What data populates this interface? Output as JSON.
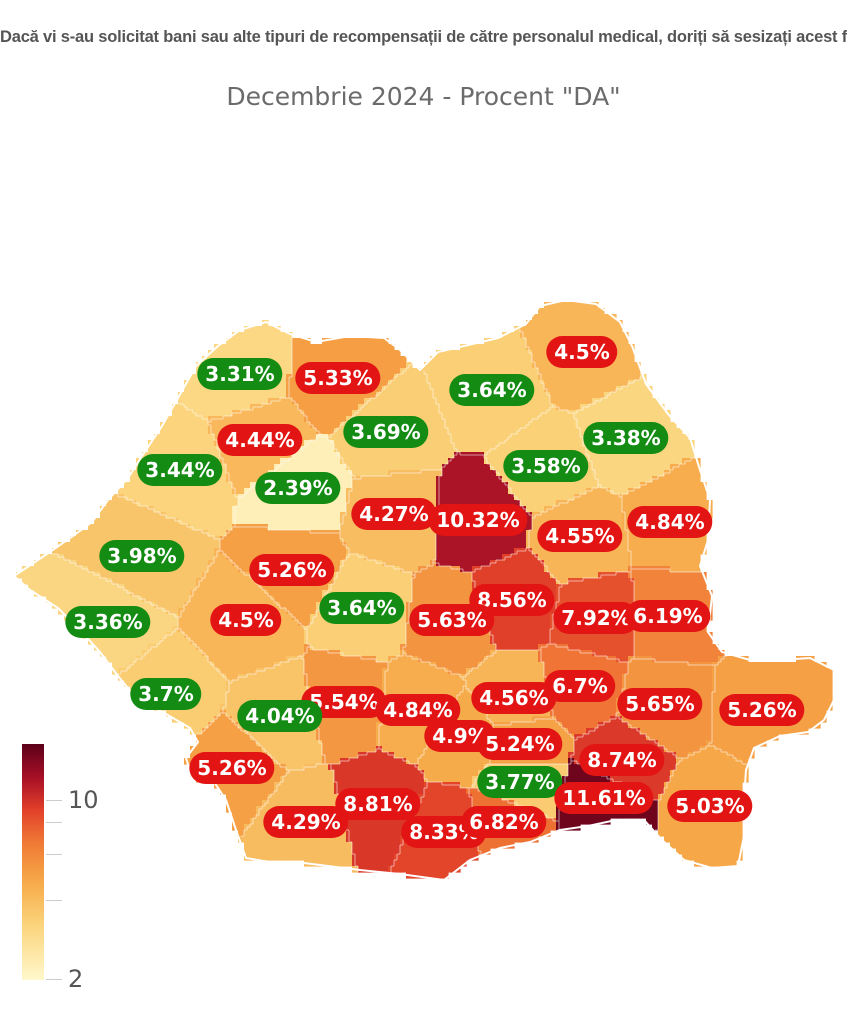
{
  "title": "Dacă vi s-au solicitat bani sau alte tipuri de recompensații de către personalul medical, doriți să sesizați acest fapt?",
  "subtitle": "Decembrie 2024 - Procent \"DA\"",
  "legend": {
    "max_label": "10",
    "min_label": "2",
    "scale_min": 2,
    "scale_max": 12
  },
  "labels": [
    {
      "text": "3.31%",
      "value": 3.31,
      "status": "green"
    },
    {
      "text": "5.33%",
      "value": 5.33,
      "status": "red"
    },
    {
      "text": "3.64%",
      "value": 3.64,
      "status": "green"
    },
    {
      "text": "4.5%",
      "value": 4.5,
      "status": "red"
    },
    {
      "text": "4.44%",
      "value": 4.44,
      "status": "red"
    },
    {
      "text": "3.69%",
      "value": 3.69,
      "status": "green"
    },
    {
      "text": "3.38%",
      "value": 3.38,
      "status": "green"
    },
    {
      "text": "3.44%",
      "value": 3.44,
      "status": "green"
    },
    {
      "text": "3.58%",
      "value": 3.58,
      "status": "green"
    },
    {
      "text": "2.39%",
      "value": 2.39,
      "status": "green"
    },
    {
      "text": "4.27%",
      "value": 4.27,
      "status": "red"
    },
    {
      "text": "10.32%",
      "value": 10.32,
      "status": "red"
    },
    {
      "text": "4.55%",
      "value": 4.55,
      "status": "red"
    },
    {
      "text": "4.84%",
      "value": 4.84,
      "status": "red"
    },
    {
      "text": "3.98%",
      "value": 3.98,
      "status": "green"
    },
    {
      "text": "5.26%",
      "value": 5.26,
      "status": "red"
    },
    {
      "text": "8.56%",
      "value": 8.56,
      "status": "red"
    },
    {
      "text": "3.36%",
      "value": 3.36,
      "status": "green"
    },
    {
      "text": "4.5%",
      "value": 4.5,
      "status": "red"
    },
    {
      "text": "3.64%",
      "value": 3.64,
      "status": "green"
    },
    {
      "text": "5.63%",
      "value": 5.63,
      "status": "red"
    },
    {
      "text": "7.92%",
      "value": 7.92,
      "status": "red"
    },
    {
      "text": "6.19%",
      "value": 6.19,
      "status": "red"
    },
    {
      "text": "6.7%",
      "value": 6.7,
      "status": "red"
    },
    {
      "text": "3.7%",
      "value": 3.7,
      "status": "green"
    },
    {
      "text": "5.54%",
      "value": 5.54,
      "status": "red"
    },
    {
      "text": "4.84%",
      "value": 4.84,
      "status": "red"
    },
    {
      "text": "4.56%",
      "value": 4.56,
      "status": "red"
    },
    {
      "text": "5.65%",
      "value": 5.65,
      "status": "red"
    },
    {
      "text": "5.26%",
      "value": 5.26,
      "status": "red"
    },
    {
      "text": "4.04%",
      "value": 4.04,
      "status": "green"
    },
    {
      "text": "4.9%",
      "value": 4.9,
      "status": "red"
    },
    {
      "text": "5.24%",
      "value": 5.24,
      "status": "red"
    },
    {
      "text": "8.74%",
      "value": 8.74,
      "status": "red"
    },
    {
      "text": "5.26%",
      "value": 5.26,
      "status": "red"
    },
    {
      "text": "3.77%",
      "value": 3.77,
      "status": "green"
    },
    {
      "text": "11.61%",
      "value": 11.61,
      "status": "red"
    },
    {
      "text": "5.03%",
      "value": 5.03,
      "status": "red"
    },
    {
      "text": "8.81%",
      "value": 8.81,
      "status": "red"
    },
    {
      "text": "4.29%",
      "value": 4.29,
      "status": "red"
    },
    {
      "text": "8.33%",
      "value": 8.33,
      "status": "red"
    },
    {
      "text": "6.82%",
      "value": 6.82,
      "status": "red"
    }
  ],
  "colors": {
    "red_badge": "#e31414",
    "green_badge": "#148c14"
  }
}
